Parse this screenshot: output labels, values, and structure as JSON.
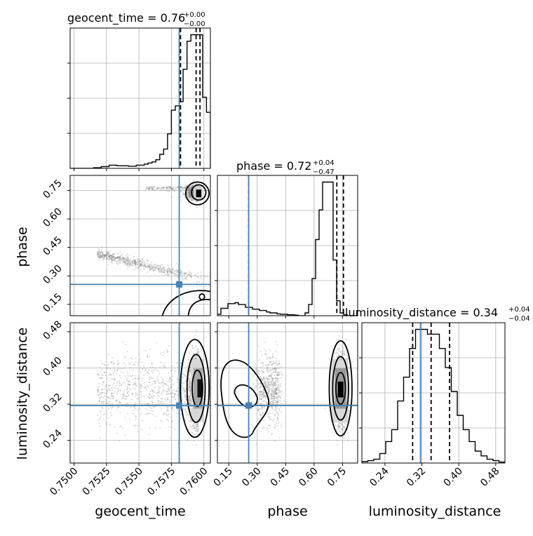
{
  "colors": {
    "truth": "#4682b4",
    "line": "#000000",
    "grid": "#b0b0b0",
    "scatter": "#808080"
  },
  "params": {
    "t": {
      "label": "geocent_time",
      "ticks": [
        "0.7500",
        "0.7525",
        "0.7550",
        "0.7575",
        "0.7600"
      ]
    },
    "p": {
      "label": "phase",
      "xticks": [
        "0.15",
        "0.30",
        "0.45",
        "0.60",
        "0.75"
      ],
      "yticks": [
        "0.15",
        "0.30",
        "0.45",
        "0.60",
        "0.75"
      ]
    },
    "d": {
      "label": "luminosity_distance",
      "xticks": [
        "0.24",
        "0.32",
        "0.40",
        "0.48"
      ],
      "yticks": [
        "0.24",
        "0.32",
        "0.40",
        "0.48"
      ]
    }
  },
  "titles": {
    "t": {
      "main": "geocent_time = 0.76",
      "plus": "+0.00",
      "minus": "−0.00"
    },
    "p": {
      "main": "phase = 0.72",
      "plus": "+0.04",
      "minus": "−0.47"
    },
    "d": {
      "main": "luminosity_distance = 0.34",
      "plus": "+0.04",
      "minus": "−0.04"
    }
  },
  "chart_data": {
    "type": "corner",
    "parameters": [
      "geocent_time",
      "phase",
      "luminosity_distance"
    ],
    "ranges": {
      "geocent_time": [
        0.7497,
        0.7605
      ],
      "phase": [
        0.09,
        0.83
      ],
      "luminosity_distance": [
        0.19,
        0.5
      ]
    },
    "truths": {
      "geocent_time": 0.7581,
      "phase": 0.255,
      "luminosity_distance": 0.317
    },
    "quantile_lines": {
      "geocent_time": [
        0.7582,
        0.7594,
        0.7597
      ],
      "phase": [
        0.255,
        0.72,
        0.755
      ],
      "luminosity_distance": [
        0.3,
        0.34,
        0.38
      ]
    },
    "histograms": {
      "geocent_time": [
        0.0,
        0.0,
        0.0,
        0.0,
        0.0,
        0.0,
        0.3,
        0.3,
        0.8,
        0.8,
        1.5,
        1.5,
        1.2,
        1.2,
        1.2,
        1.0,
        1.0,
        1.5,
        1.5,
        2.0,
        2.5,
        3.0,
        4.0,
        6.5,
        9.0,
        16.0,
        27.0,
        29.0,
        31.0,
        46.0,
        59.0,
        62.0,
        62.0,
        62.0,
        33.0,
        26.0
      ],
      "phase": [
        0.8,
        4.0,
        4.0,
        6.5,
        6.5,
        7.0,
        6.0,
        6.0,
        4.5,
        4.5,
        3.5,
        3.5,
        2.8,
        2.8,
        2.0,
        1.5,
        1.5,
        1.0,
        0.8,
        0.8,
        0.5,
        0.5,
        0.3,
        0.0,
        0.0,
        1.5,
        6.0,
        20.0,
        41.0,
        57.0,
        72.0,
        72.0,
        72.0,
        30.0,
        8.0,
        1.5,
        0.5,
        0.0,
        0.0,
        0.0
      ],
      "luminosity_distance": [
        0.3,
        0.5,
        0.8,
        2.0,
        4.5,
        7.0,
        13.0,
        18.0,
        24.0,
        28.0,
        28.0,
        27.0,
        27.0,
        24.0,
        20.0,
        15.0,
        10.0,
        7.0,
        4.5,
        2.5,
        1.5,
        0.8,
        0.5,
        0.2
      ]
    }
  }
}
